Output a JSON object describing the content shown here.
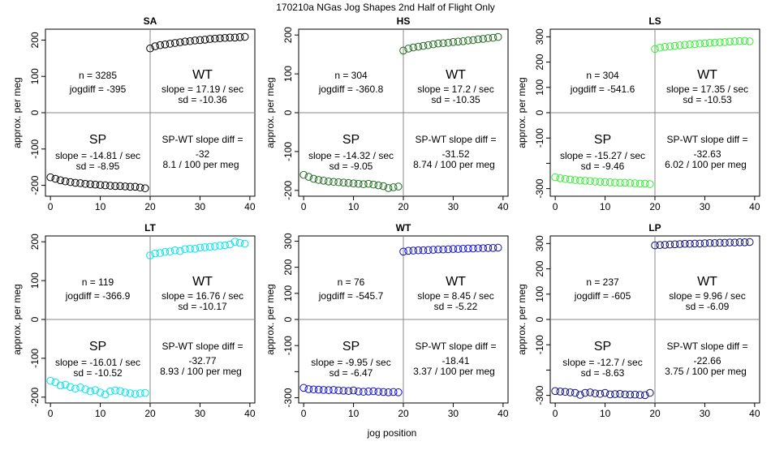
{
  "suptitle": "170210a   NGas Jog Shapes 2nd Half of Flight Only",
  "xlabel": "jog position",
  "colors": {
    "SA": "#000000",
    "HS": "#1f6b1f",
    "LS": "#33ee33",
    "LT": "#00e5ee",
    "WT": "#1010cc",
    "LP": "#101078",
    "axis": "#000000",
    "divider": "#888888"
  },
  "chart_data": [
    {
      "type": "scatter",
      "title": "SA",
      "ylabel": "approx. per meg",
      "xlabel": "jog position",
      "xlim": [
        -1,
        41
      ],
      "ylim": [
        -230,
        230
      ],
      "xticks": [
        0,
        10,
        20,
        30,
        40
      ],
      "yticks": [
        -200,
        -100,
        0,
        100,
        200
      ],
      "color_key": "SA",
      "sp_points": {
        "x": [
          0,
          1,
          2,
          3,
          4,
          5,
          6,
          7,
          8,
          9,
          10,
          11,
          12,
          13,
          14,
          15,
          16,
          17,
          18,
          19
        ],
        "y": [
          -178,
          -182,
          -186,
          -189,
          -191,
          -193,
          -194,
          -196,
          -197,
          -198,
          -199,
          -200,
          -201,
          -202,
          -202,
          -203,
          -204,
          -204,
          -206,
          -208
        ]
      },
      "wt_points": {
        "x": [
          20,
          21,
          22,
          23,
          24,
          25,
          26,
          27,
          28,
          29,
          30,
          31,
          32,
          33,
          34,
          35,
          36,
          37,
          38,
          39
        ],
        "y": [
          177,
          183,
          186,
          188,
          190,
          192,
          194,
          196,
          197,
          199,
          200,
          201,
          203,
          204,
          205,
          206,
          207,
          207,
          208,
          209
        ]
      },
      "stats": {
        "n": "n = 3285",
        "jogdiff": "jogdiff = -395"
      },
      "wt": {
        "label": "WT",
        "slope": "slope = 17.19 / sec",
        "sd": "sd = -10.36"
      },
      "sp": {
        "label": "SP",
        "slope": "slope = -14.81 / sec",
        "sd": "sd = -8.95"
      },
      "diff": {
        "title": "SP-WT slope diff =",
        "value": "-32",
        "permeg": "8.1 / 100 per meg"
      }
    },
    {
      "type": "scatter",
      "title": "HS",
      "ylabel": "approx. per meg",
      "xlabel": "jog position",
      "xlim": [
        -1,
        41
      ],
      "ylim": [
        -215,
        215
      ],
      "xticks": [
        0,
        10,
        20,
        30,
        40
      ],
      "yticks": [
        -200,
        -100,
        0,
        100,
        200
      ],
      "color_key": "HS",
      "sp_points": {
        "x": [
          0,
          1,
          2,
          3,
          4,
          5,
          6,
          7,
          8,
          9,
          10,
          11,
          12,
          13,
          14,
          15,
          16,
          17,
          18,
          19
        ],
        "y": [
          -160,
          -165,
          -170,
          -173,
          -175,
          -177,
          -178,
          -179,
          -180,
          -181,
          -182,
          -183,
          -184,
          -183,
          -185,
          -187,
          -189,
          -194,
          -192,
          -190
        ]
      },
      "wt_points": {
        "x": [
          20,
          21,
          22,
          23,
          24,
          25,
          26,
          27,
          28,
          29,
          30,
          31,
          32,
          33,
          34,
          35,
          36,
          37,
          38,
          39
        ],
        "y": [
          160,
          165,
          168,
          170,
          172,
          174,
          176,
          178,
          179,
          180,
          182,
          183,
          184,
          186,
          187,
          189,
          190,
          192,
          193,
          195
        ]
      },
      "stats": {
        "n": "n = 304",
        "jogdiff": "jogdiff = -360.8"
      },
      "wt": {
        "label": "WT",
        "slope": "slope = 17.2 / sec",
        "sd": "sd = -10.35"
      },
      "sp": {
        "label": "SP",
        "slope": "slope = -14.32 / sec",
        "sd": "sd = -9.05"
      },
      "diff": {
        "title": "SP-WT slope diff =",
        "value": "-31.52",
        "permeg": "8.74 / 100 per meg"
      }
    },
    {
      "type": "scatter",
      "title": "LS",
      "ylabel": "approx. per meg",
      "xlabel": "jog position",
      "xlim": [
        -1,
        41
      ],
      "ylim": [
        -330,
        330
      ],
      "xticks": [
        0,
        10,
        20,
        30,
        40
      ],
      "yticks": [
        -300,
        -200,
        -100,
        0,
        100,
        200,
        300
      ],
      "ytick_labels": [
        "-300",
        "",
        "-100",
        "0",
        "100",
        "200",
        "300"
      ],
      "color_key": "LS",
      "sp_points": {
        "x": [
          0,
          1,
          2,
          3,
          4,
          5,
          6,
          7,
          8,
          9,
          10,
          11,
          12,
          13,
          14,
          15,
          16,
          17,
          18,
          19
        ],
        "y": [
          -255,
          -259,
          -262,
          -264,
          -266,
          -268,
          -269,
          -270,
          -272,
          -273,
          -274,
          -275,
          -276,
          -277,
          -277,
          -278,
          -279,
          -280,
          -280,
          -282
        ]
      },
      "wt_points": {
        "x": [
          20,
          21,
          22,
          23,
          24,
          25,
          26,
          27,
          28,
          29,
          30,
          31,
          32,
          33,
          34,
          35,
          36,
          37,
          38,
          39
        ],
        "y": [
          252,
          257,
          260,
          262,
          264,
          266,
          268,
          270,
          271,
          273,
          274,
          276,
          277,
          278,
          279,
          281,
          282,
          283,
          284,
          282
        ]
      },
      "stats": {
        "n": "n = 304",
        "jogdiff": "jogdiff = -541.6"
      },
      "wt": {
        "label": "WT",
        "slope": "slope = 17.35 / sec",
        "sd": "sd = -10.53"
      },
      "sp": {
        "label": "SP",
        "slope": "slope = -15.27 / sec",
        "sd": "sd = -9.46"
      },
      "diff": {
        "title": "SP-WT slope diff =",
        "value": "-32.63",
        "permeg": "6.02 / 100 per meg"
      }
    },
    {
      "type": "scatter",
      "title": "LT",
      "ylabel": "approx. per meg",
      "xlabel": "jog position",
      "xlim": [
        -1,
        41
      ],
      "ylim": [
        -215,
        215
      ],
      "xticks": [
        0,
        10,
        20,
        30,
        40
      ],
      "yticks": [
        -200,
        -100,
        0,
        100,
        200
      ],
      "color_key": "LT",
      "sp_points": {
        "x": [
          0,
          1,
          2,
          3,
          4,
          5,
          6,
          7,
          8,
          9,
          10,
          11,
          12,
          13,
          14,
          15,
          16,
          17,
          18,
          19
        ],
        "y": [
          -158,
          -162,
          -170,
          -168,
          -174,
          -178,
          -175,
          -180,
          -185,
          -182,
          -188,
          -193,
          -185,
          -183,
          -184,
          -188,
          -190,
          -192,
          -190,
          -189
        ]
      },
      "wt_points": {
        "x": [
          20,
          21,
          22,
          23,
          24,
          25,
          26,
          27,
          28,
          29,
          30,
          31,
          32,
          33,
          34,
          35,
          36,
          37,
          38,
          39
        ],
        "y": [
          165,
          170,
          171,
          174,
          175,
          178,
          176,
          181,
          182,
          182,
          185,
          186,
          187,
          188,
          190,
          191,
          193,
          200,
          197,
          195
        ]
      },
      "stats": {
        "n": "n = 119",
        "jogdiff": "jogdiff = -366.9"
      },
      "wt": {
        "label": "WT",
        "slope": "slope = 16.76 / sec",
        "sd": "sd = -10.17"
      },
      "sp": {
        "label": "SP",
        "slope": "slope = -16.01 / sec",
        "sd": "sd = -10.52"
      },
      "diff": {
        "title": "SP-WT slope diff =",
        "value": "-32.77",
        "permeg": "8.93 / 100 per meg"
      }
    },
    {
      "type": "scatter",
      "title": "WT",
      "ylabel": "approx. per meg",
      "xlabel": "jog position",
      "xlim": [
        -1,
        41
      ],
      "ylim": [
        -320,
        320
      ],
      "xticks": [
        0,
        10,
        20,
        30,
        40
      ],
      "yticks": [
        -300,
        -200,
        -100,
        0,
        100,
        200,
        300
      ],
      "ytick_labels": [
        "-300",
        "",
        "-100",
        "0",
        "100",
        "200",
        "300"
      ],
      "color_key": "WT",
      "sp_points": {
        "x": [
          0,
          1,
          2,
          3,
          4,
          5,
          6,
          7,
          8,
          9,
          10,
          11,
          12,
          13,
          14,
          15,
          16,
          17,
          18,
          19
        ],
        "y": [
          -262,
          -267,
          -268,
          -269,
          -270,
          -271,
          -270,
          -272,
          -273,
          -274,
          -272,
          -276,
          -277,
          -276,
          -275,
          -277,
          -278,
          -279,
          -278,
          -279
        ]
      },
      "wt_points": {
        "x": [
          20,
          21,
          22,
          23,
          24,
          25,
          26,
          27,
          28,
          29,
          30,
          31,
          32,
          33,
          34,
          35,
          36,
          37,
          38,
          39
        ],
        "y": [
          260,
          263,
          264,
          265,
          265,
          266,
          267,
          268,
          268,
          269,
          270,
          270,
          271,
          272,
          272,
          273,
          273,
          274,
          274,
          275
        ]
      },
      "stats": {
        "n": "n = 76",
        "jogdiff": "jogdiff = -545.7"
      },
      "wt": {
        "label": "WT",
        "slope": "slope = 8.45 / sec",
        "sd": "sd = -5.22"
      },
      "sp": {
        "label": "SP",
        "slope": "slope = -9.95 / sec",
        "sd": "sd = -6.47"
      },
      "diff": {
        "title": "SP-WT slope diff =",
        "value": "-18.41",
        "permeg": "3.37 / 100 per meg"
      }
    },
    {
      "type": "scatter",
      "title": "LP",
      "ylabel": "approx. per meg",
      "xlabel": "jog position",
      "xlim": [
        -1,
        41
      ],
      "ylim": [
        -330,
        330
      ],
      "xticks": [
        0,
        10,
        20,
        30,
        40
      ],
      "yticks": [
        -300,
        -200,
        -100,
        0,
        100,
        200,
        300
      ],
      "ytick_labels": [
        "-300",
        "",
        "-100",
        "0",
        "100",
        "200",
        "300"
      ],
      "color_key": "LP",
      "sp_points": {
        "x": [
          0,
          1,
          2,
          3,
          4,
          5,
          6,
          7,
          8,
          9,
          10,
          11,
          12,
          13,
          14,
          15,
          16,
          17,
          18,
          19
        ],
        "y": [
          -283,
          -285,
          -286,
          -288,
          -290,
          -298,
          -290,
          -288,
          -292,
          -294,
          -290,
          -296,
          -295,
          -294,
          -296,
          -297,
          -297,
          -298,
          -299,
          -290
        ]
      },
      "wt_points": {
        "x": [
          20,
          21,
          22,
          23,
          24,
          25,
          26,
          27,
          28,
          29,
          30,
          31,
          32,
          33,
          34,
          35,
          36,
          37,
          38,
          39
        ],
        "y": [
          293,
          294,
          295,
          296,
          297,
          298,
          299,
          299,
          300,
          300,
          301,
          302,
          302,
          303,
          303,
          304,
          304,
          305,
          305,
          306
        ]
      },
      "stats": {
        "n": "n = 237",
        "jogdiff": "jogdiff = -605"
      },
      "wt": {
        "label": "WT",
        "slope": "slope = 9.96 / sec",
        "sd": "sd = -6.09"
      },
      "sp": {
        "label": "SP",
        "slope": "slope = -12.7 / sec",
        "sd": "sd = -8.63"
      },
      "diff": {
        "title": "SP-WT slope diff =",
        "value": "-22.66",
        "permeg": "3.75 / 100 per meg"
      }
    }
  ]
}
